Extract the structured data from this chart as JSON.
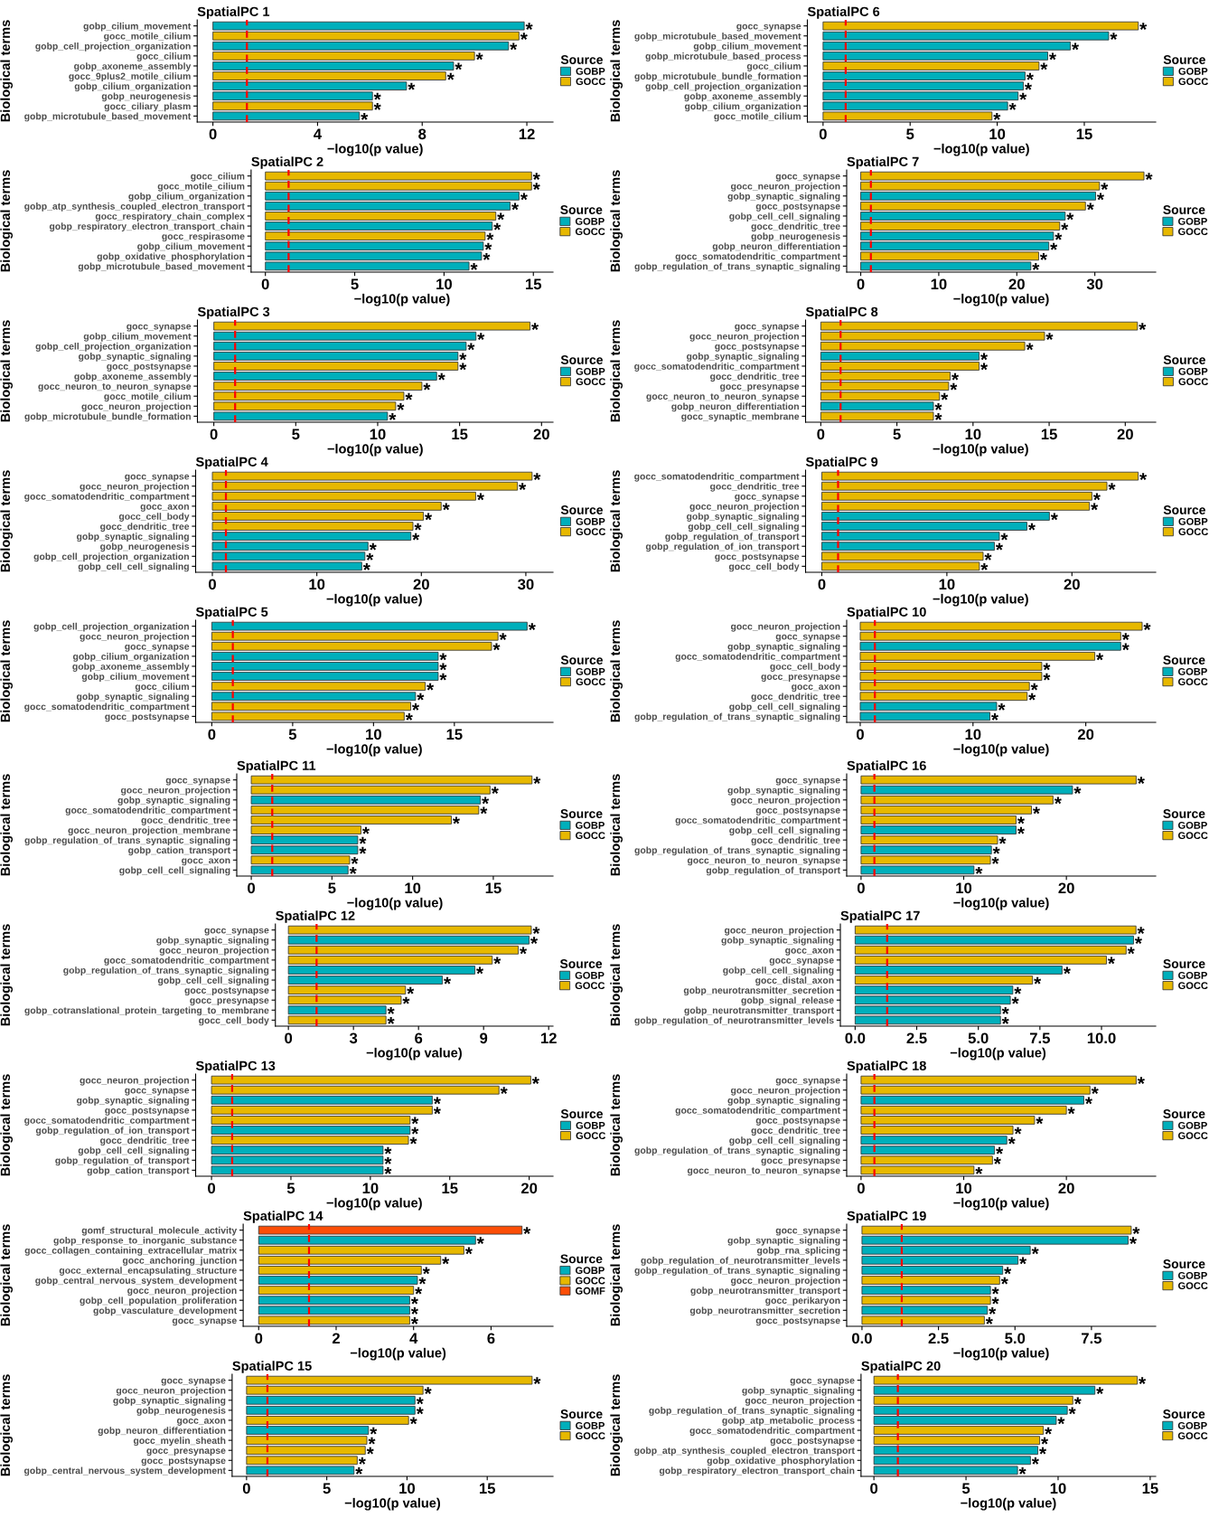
{
  "chart_data": [
    {
      "type": "bar",
      "orientation": "horizontal",
      "title": "SpatialPC 1",
      "xlabel": "−log10(p value)",
      "ylabel": "Biological terms",
      "legend_title": "Source",
      "legend": "right",
      "categories": [
        "gobp_cilium_movement",
        "gocc_motile_cilium",
        "gobp_cell_projection_organization",
        "gocc_cilium",
        "gobp_axoneme_assembly",
        "gocc_9plus2_motile_cilium",
        "gobp_cilium_organization",
        "gobp_neurogenesis",
        "gocc_ciliary_plasm",
        "gobp_microtubule_based_movement"
      ],
      "series": [
        {
          "name": "GOBP",
          "color": "#00afbb",
          "values": [
            11.9,
            null,
            11.3,
            null,
            9.2,
            null,
            7.4,
            6.1,
            null,
            5.6
          ],
          "value_labels": [
            "*",
            null,
            "*",
            null,
            "*",
            null,
            "*",
            "*",
            null,
            "*"
          ]
        },
        {
          "name": "GOCC",
          "color": "#e7b800",
          "values": [
            null,
            11.7,
            null,
            10.0,
            null,
            8.9,
            null,
            null,
            6.1,
            null
          ],
          "value_labels": [
            null,
            "*",
            null,
            "*",
            null,
            "*",
            null,
            null,
            "*",
            null
          ]
        }
      ],
      "xlim": [
        -0.6,
        13.0
      ],
      "xticks": [
        0,
        4,
        8,
        12
      ],
      "ref_lines": [
        {
          "axis": "x",
          "value": 1.3,
          "color": "#ff0000",
          "line_style": "dashed"
        }
      ]
    },
    {
      "type": "bar",
      "orientation": "horizontal",
      "title": "SpatialPC 2",
      "xlabel": "−log10(p value)",
      "ylabel": "Biological terms",
      "legend_title": "Source",
      "legend": "right",
      "categories": [
        "gocc_cilium",
        "gocc_motile_cilium",
        "gobp_cilium_organization",
        "gobp_atp_synthesis_coupled_electron_transport",
        "gocc_respiratory_chain_complex",
        "gobp_respiratory_electron_transport_chain",
        "gocc_respirasome",
        "gobp_cilium_movement",
        "gobp_oxidative_phosphorylation",
        "gobp_microtubule_based_movement"
      ],
      "series": [
        {
          "name": "GOBP",
          "color": "#00afbb",
          "values": [
            null,
            null,
            14.2,
            13.7,
            null,
            12.7,
            null,
            12.2,
            12.1,
            11.4
          ],
          "value_labels": [
            null,
            null,
            "*",
            "*",
            null,
            "*",
            null,
            "*",
            "*",
            "*"
          ]
        },
        {
          "name": "GOCC",
          "color": "#e7b800",
          "values": [
            14.9,
            14.9,
            null,
            null,
            12.9,
            null,
            12.3,
            null,
            null,
            null
          ],
          "value_labels": [
            "*",
            "*",
            null,
            null,
            "*",
            null,
            "*",
            null,
            null,
            null
          ]
        }
      ],
      "xlim": [
        -0.8,
        16.1
      ],
      "xticks": [
        0,
        5,
        10,
        15
      ],
      "ref_lines": [
        {
          "axis": "x",
          "value": 1.3,
          "color": "#ff0000",
          "line_style": "dashed"
        }
      ]
    },
    {
      "type": "bar",
      "orientation": "horizontal",
      "title": "SpatialPC 3",
      "xlabel": "−log10(p value)",
      "ylabel": "Biological terms",
      "legend_title": "Source",
      "legend": "right",
      "categories": [
        "gocc_synapse",
        "gobp_cilium_movement",
        "gobp_cell_projection_organization",
        "gobp_synaptic_signaling",
        "gocc_postsynapse",
        "gobp_axoneme_assembly",
        "gocc_neuron_to_neuron_synapse",
        "gocc_motile_cilium",
        "gocc_neuron_projection",
        "gobp_microtubule_bundle_formation"
      ],
      "series": [
        {
          "name": "GOBP",
          "color": "#00afbb",
          "values": [
            null,
            16.0,
            15.4,
            14.9,
            null,
            13.6,
            null,
            null,
            null,
            10.6
          ],
          "value_labels": [
            null,
            "*",
            "*",
            "*",
            null,
            "*",
            null,
            null,
            null,
            "*"
          ]
        },
        {
          "name": "GOCC",
          "color": "#e7b800",
          "values": [
            19.3,
            null,
            null,
            null,
            14.9,
            null,
            12.7,
            11.6,
            11.1,
            null
          ],
          "value_labels": [
            "*",
            null,
            null,
            null,
            "*",
            null,
            "*",
            "*",
            "*",
            null
          ]
        }
      ],
      "xlim": [
        -1.0,
        20.7
      ],
      "xticks": [
        0,
        5,
        10,
        15,
        20
      ],
      "ref_lines": [
        {
          "axis": "x",
          "value": 1.3,
          "color": "#ff0000",
          "line_style": "dashed"
        }
      ]
    },
    {
      "type": "bar",
      "orientation": "horizontal",
      "title": "SpatialPC 4",
      "xlabel": "−log10(p value)",
      "ylabel": "Biological terms",
      "legend_title": "Source",
      "legend": "right",
      "categories": [
        "gocc_synapse",
        "gocc_neuron_projection",
        "gocc_somatodendritic_compartment",
        "gocc_axon",
        "gocc_cell_body",
        "gocc_dendritic_tree",
        "gobp_synaptic_signaling",
        "gobp_neurogenesis",
        "gobp_cell_projection_organization",
        "gobp_cell_cell_signaling"
      ],
      "series": [
        {
          "name": "GOBP",
          "color": "#00afbb",
          "values": [
            null,
            null,
            null,
            null,
            null,
            null,
            19.0,
            14.9,
            14.6,
            14.3
          ],
          "value_labels": [
            null,
            null,
            null,
            null,
            null,
            null,
            "*",
            "*",
            "*",
            "*"
          ]
        },
        {
          "name": "GOCC",
          "color": "#e7b800",
          "values": [
            30.6,
            29.2,
            25.2,
            21.9,
            20.2,
            19.2,
            null,
            null,
            null,
            null
          ],
          "value_labels": [
            "*",
            "*",
            "*",
            "*",
            "*",
            "*",
            null,
            null,
            null,
            null
          ]
        }
      ],
      "xlim": [
        -1.6,
        32.6
      ],
      "xticks": [
        0,
        10,
        20,
        30
      ],
      "ref_lines": [
        {
          "axis": "x",
          "value": 1.3,
          "color": "#ff0000",
          "line_style": "dashed"
        }
      ]
    },
    {
      "type": "bar",
      "orientation": "horizontal",
      "title": "SpatialPC 5",
      "xlabel": "−log10(p value)",
      "ylabel": "Biological terms",
      "legend_title": "Source",
      "legend": "right",
      "categories": [
        "gobp_cell_projection_organization",
        "gocc_neuron_projection",
        "gocc_synapse",
        "gobp_cilium_organization",
        "gobp_axoneme_assembly",
        "gobp_cilium_movement",
        "gocc_cilium",
        "gobp_synaptic_signaling",
        "gocc_somatodendritic_compartment",
        "gocc_postsynapse"
      ],
      "series": [
        {
          "name": "GOBP",
          "color": "#00afbb",
          "values": [
            19.5,
            null,
            null,
            14.0,
            14.0,
            14.0,
            null,
            12.6,
            null,
            null
          ],
          "value_labels": [
            "*",
            null,
            null,
            "*",
            "*",
            "*",
            null,
            "*",
            null,
            null
          ]
        },
        {
          "name": "GOCC",
          "color": "#e7b800",
          "values": [
            null,
            17.7,
            17.3,
            null,
            null,
            null,
            13.2,
            null,
            12.3,
            11.9
          ],
          "value_labels": [
            null,
            "*",
            "*",
            null,
            null,
            null,
            "*",
            null,
            "*",
            "*"
          ]
        }
      ],
      "xlim": [
        -1.0,
        21.1
      ],
      "xticks": [
        0,
        5,
        10,
        15
      ],
      "ref_lines": [
        {
          "axis": "x",
          "value": 1.3,
          "color": "#ff0000",
          "line_style": "dashed"
        }
      ]
    },
    {
      "type": "bar",
      "orientation": "horizontal",
      "title": "SpatialPC 6",
      "xlabel": "−log10(p value)",
      "ylabel": "Biological terms",
      "legend_title": "Source",
      "legend": "right",
      "categories": [
        "gocc_synapse",
        "gobp_microtubule_based_movement",
        "gobp_cilium_movement",
        "gobp_microtubule_based_process",
        "gocc_cilium",
        "gobp_microtubule_bundle_formation",
        "gobp_cell_projection_organization",
        "gobp_axoneme_assembly",
        "gobp_cilium_organization",
        "gocc_motile_cilium"
      ],
      "series": [
        {
          "name": "GOBP",
          "color": "#00afbb",
          "values": [
            null,
            16.4,
            14.2,
            12.9,
            null,
            11.6,
            11.5,
            11.2,
            10.6,
            null
          ],
          "value_labels": [
            null,
            "*",
            "*",
            "*",
            null,
            "*",
            "*",
            "*",
            "*",
            null
          ]
        },
        {
          "name": "GOCC",
          "color": "#e7b800",
          "values": [
            18.1,
            null,
            null,
            null,
            12.4,
            null,
            null,
            null,
            null,
            9.7
          ],
          "value_labels": [
            "*",
            null,
            null,
            null,
            "*",
            null,
            null,
            null,
            null,
            "*"
          ]
        }
      ],
      "xlim": [
        -0.9,
        19.1
      ],
      "xticks": [
        0,
        5,
        10,
        15
      ],
      "ref_lines": [
        {
          "axis": "x",
          "value": 1.3,
          "color": "#ff0000",
          "line_style": "dashed"
        }
      ]
    },
    {
      "type": "bar",
      "orientation": "horizontal",
      "title": "SpatialPC 7",
      "xlabel": "−log10(p value)",
      "ylabel": "Biological terms",
      "legend_title": "Source",
      "legend": "right",
      "categories": [
        "gocc_synapse",
        "gocc_neuron_projection",
        "gobp_synaptic_signaling",
        "gocc_postsynapse",
        "gobp_cell_cell_signaling",
        "gocc_dendritic_tree",
        "gobp_neurogenesis",
        "gobp_neuron_differentiation",
        "gocc_somatodendritic_compartment",
        "gobp_regulation_of_trans_synaptic_signaling"
      ],
      "series": [
        {
          "name": "GOBP",
          "color": "#00afbb",
          "values": [
            null,
            null,
            30.1,
            null,
            26.2,
            null,
            24.7,
            24.1,
            null,
            21.8
          ],
          "value_labels": [
            null,
            null,
            "*",
            null,
            "*",
            null,
            "*",
            "*",
            null,
            "*"
          ]
        },
        {
          "name": "GOCC",
          "color": "#e7b800",
          "values": [
            36.3,
            30.6,
            null,
            28.8,
            null,
            25.5,
            null,
            null,
            22.8,
            null
          ],
          "value_labels": [
            "*",
            "*",
            null,
            "*",
            null,
            "*",
            null,
            null,
            "*",
            null
          ]
        }
      ],
      "xlim": [
        -1.8,
        37.8
      ],
      "xticks": [
        0,
        10,
        20,
        30
      ],
      "ref_lines": [
        {
          "axis": "x",
          "value": 1.3,
          "color": "#ff0000",
          "line_style": "dashed"
        }
      ]
    },
    {
      "type": "bar",
      "orientation": "horizontal",
      "title": "SpatialPC 8",
      "xlabel": "−log10(p value)",
      "ylabel": "Biological terms",
      "legend_title": "Source",
      "legend": "right",
      "categories": [
        "gocc_synapse",
        "gocc_neuron_projection",
        "gocc_postsynapse",
        "gobp_synaptic_signaling",
        "gocc_somatodendritic_compartment",
        "gocc_dendritic_tree",
        "gocc_presynapse",
        "gocc_neuron_to_neuron_synapse",
        "gobp_neuron_differentiation",
        "gocc_synaptic_membrane"
      ],
      "series": [
        {
          "name": "GOBP",
          "color": "#00afbb",
          "values": [
            null,
            null,
            null,
            10.4,
            null,
            null,
            null,
            null,
            7.4,
            null
          ],
          "value_labels": [
            null,
            null,
            null,
            "*",
            null,
            null,
            null,
            null,
            "*",
            null
          ]
        },
        {
          "name": "GOCC",
          "color": "#e7b800",
          "values": [
            20.8,
            14.7,
            13.4,
            null,
            10.4,
            8.5,
            8.4,
            7.8,
            null,
            7.4
          ],
          "value_labels": [
            "*",
            "*",
            "*",
            null,
            "*",
            "*",
            "*",
            "*",
            null,
            "*"
          ]
        }
      ],
      "xlim": [
        -1.0,
        22.0
      ],
      "xticks": [
        0,
        5,
        10,
        15,
        20
      ],
      "ref_lines": [
        {
          "axis": "x",
          "value": 1.3,
          "color": "#ff0000",
          "line_style": "dashed"
        }
      ]
    },
    {
      "type": "bar",
      "orientation": "horizontal",
      "title": "SpatialPC 9",
      "xlabel": "−log10(p value)",
      "ylabel": "Biological terms",
      "legend_title": "Source",
      "legend": "right",
      "categories": [
        "gocc_somatodendritic_compartment",
        "gocc_dendritic_tree",
        "gocc_synapse",
        "gocc_neuron_projection",
        "gobp_synaptic_signaling",
        "gobp_cell_cell_signaling",
        "gobp_regulation_of_transport",
        "gobp_regulation_of_ion_transport",
        "gocc_postsynapse",
        "gocc_cell_body"
      ],
      "series": [
        {
          "name": "GOBP",
          "color": "#00afbb",
          "values": [
            null,
            null,
            null,
            null,
            18.2,
            16.4,
            14.2,
            13.8,
            null,
            null
          ],
          "value_labels": [
            null,
            null,
            null,
            null,
            "*",
            "*",
            "*",
            "*",
            null,
            null
          ]
        },
        {
          "name": "GOCC",
          "color": "#e7b800",
          "values": [
            25.3,
            22.8,
            21.6,
            21.4,
            null,
            null,
            null,
            null,
            12.9,
            12.6
          ],
          "value_labels": [
            "*",
            "*",
            "*",
            "*",
            null,
            null,
            null,
            null,
            "*",
            "*"
          ]
        }
      ],
      "xlim": [
        -1.3,
        26.7
      ],
      "xticks": [
        0,
        10,
        20
      ],
      "ref_lines": [
        {
          "axis": "x",
          "value": 1.3,
          "color": "#ff0000",
          "line_style": "dashed"
        }
      ]
    },
    {
      "type": "bar",
      "orientation": "horizontal",
      "title": "SpatialPC 10",
      "xlabel": "−log10(p value)",
      "ylabel": "Biological terms",
      "legend_title": "Source",
      "legend": "right",
      "categories": [
        "gocc_neuron_projection",
        "gocc_synapse",
        "gobp_synaptic_signaling",
        "gocc_somatodendritic_compartment",
        "gocc_cell_body",
        "gocc_presynapse",
        "gocc_axon",
        "gocc_dendritic_tree",
        "gobp_cell_cell_signaling",
        "gobp_regulation_of_trans_synaptic_signaling"
      ],
      "series": [
        {
          "name": "GOBP",
          "color": "#00afbb",
          "values": [
            null,
            null,
            23.1,
            null,
            null,
            null,
            null,
            null,
            12.1,
            11.5
          ],
          "value_labels": [
            null,
            null,
            "*",
            null,
            null,
            null,
            null,
            null,
            "*",
            "*"
          ]
        },
        {
          "name": "GOCC",
          "color": "#e7b800",
          "values": [
            25.0,
            23.1,
            null,
            20.8,
            16.1,
            16.1,
            15.0,
            14.8,
            null,
            null
          ],
          "value_labels": [
            "*",
            "*",
            null,
            "*",
            "*",
            "*",
            "*",
            "*",
            null,
            null
          ]
        }
      ],
      "xlim": [
        -1.2,
        26.2
      ],
      "xticks": [
        0,
        10,
        20
      ],
      "ref_lines": [
        {
          "axis": "x",
          "value": 1.3,
          "color": "#ff0000",
          "line_style": "dashed"
        }
      ]
    },
    {
      "type": "bar",
      "orientation": "horizontal",
      "title": "SpatialPC 11",
      "xlabel": "−log10(p value)",
      "ylabel": "Biological terms",
      "legend_title": "Source",
      "legend": "right",
      "categories": [
        "gocc_synapse",
        "gocc_neuron_projection",
        "gobp_synaptic_signaling",
        "gocc_somatodendritic_compartment",
        "gocc_dendritic_tree",
        "gocc_neuron_projection_membrane",
        "gobp_regulation_of_trans_synaptic_signaling",
        "gobp_cation_transport",
        "gocc_axon",
        "gobp_cell_cell_signaling"
      ],
      "series": [
        {
          "name": "GOBP",
          "color": "#00afbb",
          "values": [
            null,
            null,
            14.2,
            null,
            null,
            null,
            6.6,
            6.6,
            null,
            6.0
          ],
          "value_labels": [
            null,
            null,
            "*",
            null,
            null,
            null,
            "*",
            "*",
            null,
            "*"
          ]
        },
        {
          "name": "GOCC",
          "color": "#e7b800",
          "values": [
            17.4,
            14.8,
            null,
            14.1,
            12.4,
            6.8,
            null,
            null,
            6.1,
            null
          ],
          "value_labels": [
            "*",
            "*",
            null,
            "*",
            "*",
            "*",
            null,
            null,
            "*",
            null
          ]
        }
      ],
      "xlim": [
        -0.9,
        18.7
      ],
      "xticks": [
        0,
        5,
        10,
        15
      ],
      "ref_lines": [
        {
          "axis": "x",
          "value": 1.3,
          "color": "#ff0000",
          "line_style": "dashed"
        }
      ]
    },
    {
      "type": "bar",
      "orientation": "horizontal",
      "title": "SpatialPC 12",
      "xlabel": "−log10(p value)",
      "ylabel": "Biological terms",
      "legend_title": "Source",
      "legend": "right",
      "categories": [
        "gocc_synapse",
        "gobp_synaptic_signaling",
        "gocc_neuron_projection",
        "gocc_somatodendritic_compartment",
        "gobp_regulation_of_trans_synaptic_signaling",
        "gobp_cell_cell_signaling",
        "gocc_postsynapse",
        "gocc_presynapse",
        "gobp_cotranslational_protein_targeting_to_membrane",
        "gocc_cell_body"
      ],
      "series": [
        {
          "name": "GOBP",
          "color": "#00afbb",
          "values": [
            null,
            11.1,
            null,
            null,
            8.6,
            7.1,
            null,
            null,
            4.5,
            null
          ],
          "value_labels": [
            null,
            "*",
            null,
            null,
            "*",
            "*",
            null,
            null,
            "*",
            null
          ]
        },
        {
          "name": "GOCC",
          "color": "#e7b800",
          "values": [
            11.2,
            null,
            10.6,
            9.4,
            null,
            null,
            5.4,
            5.2,
            null,
            4.5
          ],
          "value_labels": [
            "*",
            null,
            "*",
            "*",
            null,
            null,
            "*",
            "*",
            null,
            "*"
          ]
        }
      ],
      "xlim": [
        -0.6,
        12.2
      ],
      "xticks": [
        0,
        3,
        6,
        9,
        12
      ],
      "ref_lines": [
        {
          "axis": "x",
          "value": 1.3,
          "color": "#ff0000",
          "line_style": "dashed"
        }
      ]
    },
    {
      "type": "bar",
      "orientation": "horizontal",
      "title": "SpatialPC 13",
      "xlabel": "−log10(p value)",
      "ylabel": "Biological terms",
      "legend_title": "Source",
      "legend": "right",
      "categories": [
        "gocc_neuron_projection",
        "gocc_synapse",
        "gobp_synaptic_signaling",
        "gocc_postsynapse",
        "gocc_somatodendritic_compartment",
        "gobp_regulation_of_ion_transport",
        "gocc_dendritic_tree",
        "gobp_cell_cell_signaling",
        "gobp_regulation_of_transport",
        "gobp_cation_transport"
      ],
      "series": [
        {
          "name": "GOBP",
          "color": "#00afbb",
          "values": [
            null,
            null,
            13.9,
            null,
            null,
            12.5,
            null,
            10.8,
            10.8,
            10.8
          ],
          "value_labels": [
            null,
            null,
            "*",
            null,
            null,
            "*",
            null,
            "*",
            "*",
            "*"
          ]
        },
        {
          "name": "GOCC",
          "color": "#e7b800",
          "values": [
            20.1,
            18.1,
            null,
            13.9,
            12.5,
            null,
            12.4,
            null,
            null,
            null
          ],
          "value_labels": [
            "*",
            "*",
            null,
            "*",
            "*",
            null,
            "*",
            null,
            null,
            null
          ]
        }
      ],
      "xlim": [
        -1.0,
        21.5
      ],
      "xticks": [
        0,
        5,
        10,
        15,
        20
      ],
      "ref_lines": [
        {
          "axis": "x",
          "value": 1.3,
          "color": "#ff0000",
          "line_style": "dashed"
        }
      ]
    },
    {
      "type": "bar",
      "orientation": "horizontal",
      "title": "SpatialPC 14",
      "xlabel": "−log10(p value)",
      "ylabel": "Biological terms",
      "legend_title": "Source",
      "legend": "right",
      "categories": [
        "gomf_structural_molecule_activity",
        "gobp_response_to_inorganic_substance",
        "gocc_collagen_containing_extracellular_matrix",
        "gocc_anchoring_junction",
        "gocc_external_encapsulating_structure",
        "gobp_central_nervous_system_development",
        "gocc_neuron_projection",
        "gobp_cell_population_proliferation",
        "gobp_vasculature_development",
        "gocc_synapse"
      ],
      "series": [
        {
          "name": "GOBP",
          "color": "#00afbb",
          "values": [
            null,
            5.6,
            null,
            null,
            null,
            4.1,
            null,
            3.9,
            3.9,
            null
          ],
          "value_labels": [
            null,
            "*",
            null,
            null,
            null,
            "*",
            null,
            "*",
            "*",
            null
          ]
        },
        {
          "name": "GOCC",
          "color": "#e7b800",
          "values": [
            null,
            null,
            5.3,
            4.7,
            4.2,
            null,
            4.0,
            null,
            null,
            3.9
          ],
          "value_labels": [
            null,
            null,
            "*",
            "*",
            "*",
            null,
            "*",
            null,
            null,
            "*"
          ]
        },
        {
          "name": "GOMF",
          "color": "#fc4e07",
          "values": [
            6.8,
            null,
            null,
            null,
            null,
            null,
            null,
            null,
            null,
            null
          ],
          "value_labels": [
            "*",
            null,
            null,
            null,
            null,
            null,
            null,
            null,
            null,
            null
          ]
        }
      ],
      "xlim": [
        -0.4,
        7.6
      ],
      "xticks": [
        0,
        2,
        4,
        6
      ],
      "ref_lines": [
        {
          "axis": "x",
          "value": 1.3,
          "color": "#ff0000",
          "line_style": "dashed"
        }
      ]
    },
    {
      "type": "bar",
      "orientation": "horizontal",
      "title": "SpatialPC 15",
      "xlabel": "−log10(p value)",
      "ylabel": "Biological terms",
      "legend_title": "Source",
      "legend": "right",
      "categories": [
        "gocc_synapse",
        "gocc_neuron_projection",
        "gobp_synaptic_signaling",
        "gobp_neurogenesis",
        "gocc_axon",
        "gobp_neuron_differentiation",
        "gocc_myelin_sheath",
        "gocc_presynapse",
        "gocc_postsynapse",
        "gobp_central_nervous_system_development"
      ],
      "series": [
        {
          "name": "GOBP",
          "color": "#00afbb",
          "values": [
            null,
            null,
            10.5,
            10.5,
            null,
            7.6,
            null,
            null,
            null,
            6.7
          ],
          "value_labels": [
            null,
            null,
            "*",
            "*",
            null,
            "*",
            null,
            null,
            null,
            "*"
          ]
        },
        {
          "name": "GOCC",
          "color": "#e7b800",
          "values": [
            17.8,
            11.0,
            null,
            null,
            10.1,
            null,
            7.5,
            7.4,
            6.9,
            null
          ],
          "value_labels": [
            "*",
            "*",
            null,
            null,
            "*",
            null,
            "*",
            "*",
            "*",
            null
          ]
        }
      ],
      "xlim": [
        -0.9,
        19.1
      ],
      "xticks": [
        0,
        5,
        10,
        15
      ],
      "ref_lines": [
        {
          "axis": "x",
          "value": 1.3,
          "color": "#ff0000",
          "line_style": "dashed"
        }
      ]
    },
    {
      "type": "bar",
      "orientation": "horizontal",
      "title": "SpatialPC 16",
      "xlabel": "−log10(p value)",
      "ylabel": "Biological terms",
      "legend_title": "Source",
      "legend": "right",
      "categories": [
        "gocc_synapse",
        "gobp_synaptic_signaling",
        "gocc_neuron_projection",
        "gocc_postsynapse",
        "gocc_somatodendritic_compartment",
        "gobp_cell_cell_signaling",
        "gocc_dendritic_tree",
        "gobp_regulation_of_trans_synaptic_signaling",
        "gocc_neuron_to_neuron_synapse",
        "gobp_regulation_of_transport"
      ],
      "series": [
        {
          "name": "GOBP",
          "color": "#00afbb",
          "values": [
            null,
            20.6,
            null,
            null,
            null,
            15.1,
            null,
            12.7,
            null,
            11.0
          ],
          "value_labels": [
            null,
            "*",
            null,
            null,
            null,
            "*",
            null,
            "*",
            null,
            "*"
          ]
        },
        {
          "name": "GOCC",
          "color": "#e7b800",
          "values": [
            26.8,
            null,
            18.7,
            16.6,
            15.1,
            null,
            13.3,
            null,
            12.6,
            null
          ],
          "value_labels": [
            "*",
            null,
            "*",
            "*",
            "*",
            null,
            "*",
            null,
            "*",
            null
          ]
        }
      ],
      "xlim": [
        -1.4,
        28.7
      ],
      "xticks": [
        0,
        10,
        20
      ],
      "ref_lines": [
        {
          "axis": "x",
          "value": 1.3,
          "color": "#ff0000",
          "line_style": "dashed"
        }
      ]
    },
    {
      "type": "bar",
      "orientation": "horizontal",
      "title": "SpatialPC 17",
      "xlabel": "−log10(p value)",
      "ylabel": "Biological terms",
      "legend_title": "Source",
      "legend": "right",
      "categories": [
        "gocc_neuron_projection",
        "gobp_synaptic_signaling",
        "gocc_axon",
        "gocc_synapse",
        "gobp_cell_cell_signaling",
        "gocc_distal_axon",
        "gobp_neurotransmitter_secretion",
        "gobp_signal_release",
        "gobp_neurotransmitter_transport",
        "gobp_regulation_of_neurotransmitter_levels"
      ],
      "series": [
        {
          "name": "GOBP",
          "color": "#00afbb",
          "values": [
            null,
            11.3,
            null,
            null,
            8.4,
            null,
            6.4,
            6.3,
            5.9,
            5.9
          ],
          "value_labels": [
            null,
            "*",
            null,
            null,
            "*",
            null,
            "*",
            "*",
            "*",
            "*"
          ]
        },
        {
          "name": "GOCC",
          "color": "#e7b800",
          "values": [
            11.4,
            null,
            11.0,
            10.2,
            null,
            7.2,
            null,
            null,
            null,
            null
          ],
          "value_labels": [
            "*",
            null,
            "*",
            "*",
            null,
            "*",
            null,
            null,
            null,
            null
          ]
        }
      ],
      "xlim": [
        -0.6,
        12.2
      ],
      "xticks": [
        {
          "value": 0,
          "label": "0.0"
        },
        2.5,
        {
          "value": 5,
          "label": "5.0"
        },
        7.5,
        {
          "value": 10,
          "label": "10.0"
        }
      ],
      "ref_lines": [
        {
          "axis": "x",
          "value": 1.3,
          "color": "#ff0000",
          "line_style": "dashed"
        }
      ]
    },
    {
      "type": "bar",
      "orientation": "horizontal",
      "title": "SpatialPC 18",
      "xlabel": "−log10(p value)",
      "ylabel": "Biological terms",
      "legend_title": "Source",
      "legend": "right",
      "categories": [
        "gocc_synapse",
        "gocc_neuron_projection",
        "gobp_synaptic_signaling",
        "gocc_somatodendritic_compartment",
        "gocc_postsynapse",
        "gocc_dendritic_tree",
        "gobp_cell_cell_signaling",
        "gobp_regulation_of_trans_synaptic_signaling",
        "gocc_presynapse",
        "gocc_neuron_to_neuron_synapse"
      ],
      "series": [
        {
          "name": "GOBP",
          "color": "#00afbb",
          "values": [
            null,
            null,
            21.7,
            null,
            null,
            null,
            14.2,
            13.0,
            null,
            null
          ],
          "value_labels": [
            null,
            null,
            "*",
            null,
            null,
            null,
            "*",
            "*",
            null,
            null
          ]
        },
        {
          "name": "GOCC",
          "color": "#e7b800",
          "values": [
            26.8,
            22.3,
            null,
            20.0,
            16.9,
            14.8,
            null,
            null,
            12.8,
            11.0
          ],
          "value_labels": [
            "*",
            "*",
            null,
            "*",
            "*",
            "*",
            null,
            null,
            "*",
            "*"
          ]
        }
      ],
      "xlim": [
        -1.4,
        28.7
      ],
      "xticks": [
        0,
        10,
        20
      ],
      "ref_lines": [
        {
          "axis": "x",
          "value": 1.3,
          "color": "#ff0000",
          "line_style": "dashed"
        }
      ]
    },
    {
      "type": "bar",
      "orientation": "horizontal",
      "title": "SpatialPC 19",
      "xlabel": "−log10(p value)",
      "ylabel": "Biological terms",
      "legend_title": "Source",
      "legend": "right",
      "categories": [
        "gocc_synapse",
        "gobp_synaptic_signaling",
        "gobp_rna_splicing",
        "gobp_regulation_of_neurotransmitter_levels",
        "gobp_regulation_of_trans_synaptic_signaling",
        "gocc_neuron_projection",
        "gobp_neurotransmitter_transport",
        "gocc_perikaryon",
        "gobp_neurotransmitter_secretion",
        "gocc_postsynapse"
      ],
      "series": [
        {
          "name": "GOBP",
          "color": "#00afbb",
          "values": [
            null,
            8.7,
            5.5,
            5.1,
            4.6,
            null,
            4.2,
            null,
            4.1,
            null
          ],
          "value_labels": [
            null,
            "*",
            "*",
            "*",
            "*",
            null,
            "*",
            null,
            "*",
            null
          ]
        },
        {
          "name": "GOCC",
          "color": "#e7b800",
          "values": [
            8.8,
            null,
            null,
            null,
            null,
            4.5,
            null,
            4.2,
            null,
            4.0
          ],
          "value_labels": [
            "*",
            null,
            null,
            null,
            null,
            "*",
            null,
            "*",
            null,
            "*"
          ]
        }
      ],
      "xlim": [
        -0.5,
        9.6
      ],
      "xticks": [
        {
          "value": 0,
          "label": "0.0"
        },
        2.5,
        {
          "value": 5,
          "label": "5.0"
        },
        7.5
      ],
      "ref_lines": [
        {
          "axis": "x",
          "value": 1.3,
          "color": "#ff0000",
          "line_style": "dashed"
        }
      ]
    },
    {
      "type": "bar",
      "orientation": "horizontal",
      "title": "SpatialPC 20",
      "xlabel": "−log10(p value)",
      "ylabel": "Biological terms",
      "legend_title": "Source",
      "legend": "right",
      "categories": [
        "gocc_synapse",
        "gobp_synaptic_signaling",
        "gocc_neuron_projection",
        "gobp_regulation_of_trans_synaptic_signaling",
        "gobp_atp_metabolic_process",
        "gocc_somatodendritic_compartment",
        "gocc_postsynapse",
        "gobp_atp_synthesis_coupled_electron_transport",
        "gobp_oxidative_phosphorylation",
        "gobp_respiratory_electron_transport_chain"
      ],
      "series": [
        {
          "name": "GOBP",
          "color": "#00afbb",
          "values": [
            null,
            12.0,
            null,
            10.5,
            9.9,
            null,
            null,
            8.9,
            8.5,
            7.8
          ],
          "value_labels": [
            null,
            "*",
            null,
            "*",
            "*",
            null,
            null,
            "*",
            "*",
            "*"
          ]
        },
        {
          "name": "GOCC",
          "color": "#e7b800",
          "values": [
            14.3,
            null,
            10.8,
            null,
            null,
            9.2,
            9.0,
            null,
            null,
            null
          ],
          "value_labels": [
            "*",
            null,
            "*",
            null,
            null,
            "*",
            "*",
            null,
            null,
            null
          ]
        }
      ],
      "xlim": [
        -0.7,
        15.3
      ],
      "xticks": [
        0,
        5,
        10,
        15
      ],
      "ref_lines": [
        {
          "axis": "x",
          "value": 1.3,
          "color": "#ff0000",
          "line_style": "dashed"
        }
      ]
    }
  ]
}
